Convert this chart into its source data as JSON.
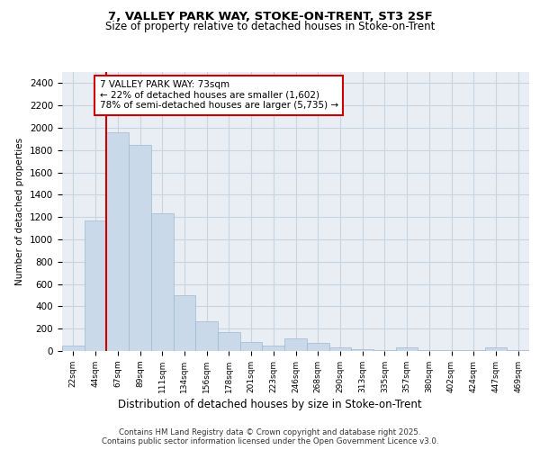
{
  "title1": "7, VALLEY PARK WAY, STOKE-ON-TRENT, ST3 2SF",
  "title2": "Size of property relative to detached houses in Stoke-on-Trent",
  "xlabel": "Distribution of detached houses by size in Stoke-on-Trent",
  "ylabel": "Number of detached properties",
  "categories": [
    "22sqm",
    "44sqm",
    "67sqm",
    "89sqm",
    "111sqm",
    "134sqm",
    "156sqm",
    "178sqm",
    "201sqm",
    "223sqm",
    "246sqm",
    "268sqm",
    "290sqm",
    "313sqm",
    "335sqm",
    "357sqm",
    "380sqm",
    "402sqm",
    "424sqm",
    "447sqm",
    "469sqm"
  ],
  "values": [
    50,
    1170,
    1960,
    1850,
    1230,
    500,
    270,
    170,
    80,
    50,
    110,
    70,
    30,
    20,
    10,
    30,
    10,
    5,
    5,
    30,
    5
  ],
  "bar_color": "#c9d9ea",
  "bar_edge_color": "#a0b8d0",
  "annotation_text": "7 VALLEY PARK WAY: 73sqm\n← 22% of detached houses are smaller (1,602)\n78% of semi-detached houses are larger (5,735) →",
  "annotation_box_color": "#ffffff",
  "annotation_box_edge": "#cc0000",
  "vline_color": "#cc0000",
  "grid_color": "#c8d4e0",
  "background_color": "#e8eef4",
  "footer1": "Contains HM Land Registry data © Crown copyright and database right 2025.",
  "footer2": "Contains public sector information licensed under the Open Government Licence v3.0.",
  "ylim": [
    0,
    2500
  ],
  "yticks": [
    0,
    200,
    400,
    600,
    800,
    1000,
    1200,
    1400,
    1600,
    1800,
    2000,
    2200,
    2400
  ],
  "vline_x": 1.5
}
